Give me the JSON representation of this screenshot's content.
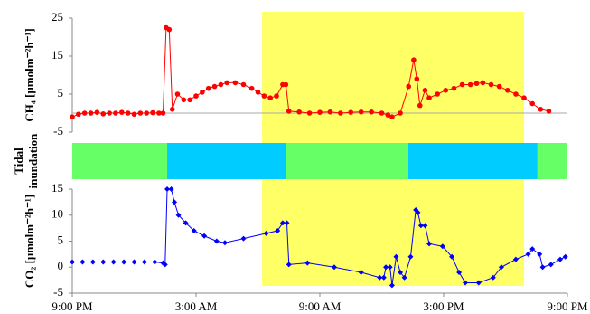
{
  "chart_data": [
    {
      "type": "line",
      "ylabel": "CH₄ [µmolm⁻²h⁻¹]",
      "xlim": [
        0,
        24
      ],
      "ylim": [
        -5,
        25
      ],
      "yticks": [
        -5,
        5,
        15,
        25
      ],
      "x": [
        0,
        0.3,
        0.6,
        0.9,
        1.2,
        1.5,
        1.8,
        2.1,
        2.4,
        2.7,
        3.0,
        3.3,
        3.6,
        3.9,
        4.2,
        4.4,
        4.55,
        4.7,
        4.85,
        5.1,
        5.4,
        5.7,
        6.0,
        6.3,
        6.6,
        6.9,
        7.2,
        7.5,
        7.9,
        8.3,
        8.7,
        9.0,
        9.3,
        9.6,
        9.9,
        10.2,
        10.35,
        10.5,
        11.0,
        11.5,
        12.0,
        12.5,
        13.0,
        13.5,
        14.0,
        14.5,
        15.0,
        15.3,
        15.5,
        15.9,
        16.3,
        16.55,
        16.7,
        16.85,
        17.1,
        17.3,
        17.7,
        18.1,
        18.5,
        18.9,
        19.3,
        19.6,
        19.9,
        20.3,
        20.7,
        21.1,
        21.5,
        21.9,
        22.3,
        22.7,
        23.1
      ],
      "series": [
        {
          "name": "CH4",
          "color": "#ff0000",
          "values": [
            -1,
            -0.3,
            0,
            0,
            0.2,
            -0.2,
            0,
            0,
            0.2,
            0,
            -0.3,
            0,
            0,
            0.1,
            0,
            0,
            22.5,
            22,
            1,
            5,
            3.5,
            3.5,
            4.5,
            5.5,
            6.5,
            7,
            7.5,
            8,
            8,
            7.5,
            6.5,
            5.5,
            4.5,
            4,
            4.5,
            7.5,
            7.5,
            0.5,
            0.3,
            0,
            0.2,
            0.3,
            0,
            0.2,
            0.3,
            0.3,
            0,
            -0.5,
            -1,
            0,
            7,
            14,
            9,
            2,
            6,
            4,
            5,
            6,
            6.5,
            7.5,
            7.5,
            7.8,
            8,
            7.5,
            7,
            6,
            5,
            4,
            2.5,
            1,
            0.5
          ]
        }
      ]
    },
    {
      "type": "line",
      "ylabel": "CO₂ [µmolm⁻²h⁻¹]",
      "xlim": [
        0,
        24
      ],
      "ylim": [
        -5,
        15
      ],
      "yticks": [
        -5,
        0,
        5,
        10,
        15
      ],
      "xticks": [
        {
          "value": 0,
          "label": "9:00 PM"
        },
        {
          "value": 6,
          "label": "3:00 AM"
        },
        {
          "value": 12,
          "label": "9:00 AM"
        },
        {
          "value": 18,
          "label": "3:00 PM"
        },
        {
          "value": 24,
          "label": "9:00 PM"
        }
      ],
      "x": [
        0,
        0.5,
        1.0,
        1.5,
        2.0,
        2.5,
        3.0,
        3.5,
        4.0,
        4.4,
        4.5,
        4.6,
        4.8,
        4.95,
        5.15,
        5.5,
        5.9,
        6.4,
        7.0,
        7.4,
        8.3,
        9.4,
        9.95,
        10.2,
        10.4,
        10.5,
        11.4,
        12.7,
        14.0,
        14.9,
        15.1,
        15.2,
        15.4,
        15.5,
        15.7,
        15.9,
        16.1,
        16.4,
        16.65,
        16.75,
        16.9,
        17.1,
        17.3,
        17.95,
        18.4,
        18.75,
        19.05,
        19.7,
        20.4,
        20.8,
        21.5,
        22.1,
        22.3,
        22.65,
        22.8,
        23.2,
        23.65,
        23.9
      ],
      "series": [
        {
          "name": "CO2",
          "color": "#0000ff",
          "values": [
            1,
            1,
            1,
            1,
            1,
            1,
            1,
            1,
            1,
            0.8,
            0.5,
            15,
            15,
            12.5,
            10,
            8.5,
            7,
            6,
            5,
            4.7,
            5.5,
            6.5,
            7,
            8.5,
            8.5,
            0.5,
            0.8,
            0,
            -1,
            -2,
            -2,
            0,
            0,
            -3.5,
            2,
            -1,
            -2,
            2,
            11,
            10.5,
            8,
            8,
            4.5,
            4,
            2,
            -1,
            -3,
            -3,
            -2,
            0,
            1.5,
            2.5,
            3.5,
            2.5,
            0,
            0.5,
            1.5,
            2
          ]
        }
      ]
    }
  ],
  "tidal": {
    "label": [
      "Tidal",
      "inundation"
    ],
    "segments": [
      {
        "start": 0,
        "end": 4.6,
        "color": "#66ff66"
      },
      {
        "start": 4.6,
        "end": 10.38,
        "color": "#00ccff"
      },
      {
        "start": 10.38,
        "end": 16.29,
        "color": "#66ff66"
      },
      {
        "start": 16.29,
        "end": 22.55,
        "color": "#00ccff"
      },
      {
        "start": 22.55,
        "end": 24,
        "color": "#66ff66"
      }
    ]
  },
  "shade": {
    "range": [
      9.2,
      21.9
    ],
    "color": "#ffff66"
  }
}
